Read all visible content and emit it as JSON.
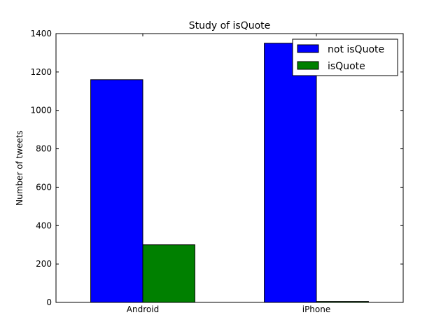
{
  "chart_data": {
    "type": "bar",
    "title": "Study of isQuote",
    "xlabel": "",
    "ylabel": "Number of tweets",
    "categories": [
      "Android",
      "iPhone"
    ],
    "series": [
      {
        "name": "not isQuote",
        "color": "#0000ff",
        "values": [
          1160,
          1350
        ]
      },
      {
        "name": "isQuote",
        "color": "#008000",
        "values": [
          300,
          5
        ]
      }
    ],
    "ylim": [
      0,
      1400
    ],
    "yticks": [
      0,
      200,
      400,
      600,
      800,
      1000,
      1200,
      1400
    ],
    "ytick_labels": [
      "0",
      "200",
      "400",
      "600",
      "800",
      "1000",
      "1200",
      "1400"
    ],
    "grid": false,
    "legend_position": "top-right"
  }
}
